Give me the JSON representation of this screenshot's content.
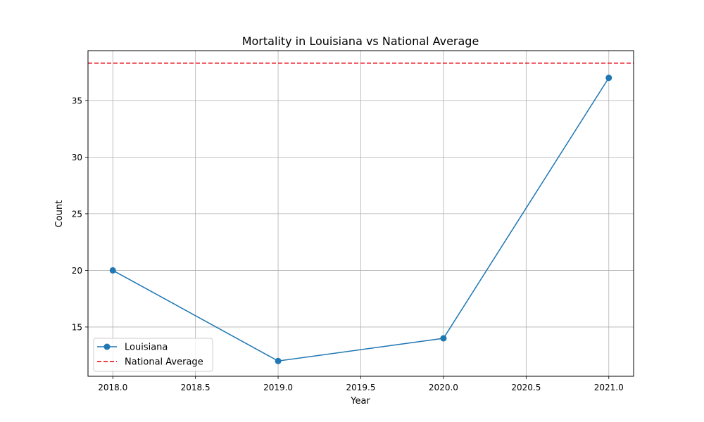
{
  "chart_data": {
    "type": "line",
    "title": "Mortality in Louisiana vs National Average",
    "xlabel": "Year",
    "ylabel": "Count",
    "xlim": [
      1967.85,
      2021.15
    ],
    "ylim": [
      10.65,
      39.4
    ],
    "xlim_visible": [
      2017.85,
      2021.15
    ],
    "ylim_visible": [
      10.65,
      39.4
    ],
    "x_ticks": [
      2018.0,
      2018.5,
      2019.0,
      2019.5,
      2020.0,
      2020.5,
      2021.0
    ],
    "x_tick_labels": [
      "2018.0",
      "2018.5",
      "2019.0",
      "2019.5",
      "2020.0",
      "2020.5",
      "2021.0"
    ],
    "y_ticks": [
      15,
      20,
      25,
      30,
      35
    ],
    "y_tick_labels": [
      "15",
      "20",
      "25",
      "30",
      "35"
    ],
    "grid": true,
    "legend_position": "lower-left",
    "series": [
      {
        "name": "Louisiana",
        "x": [
          2018,
          2019,
          2020,
          2021
        ],
        "y": [
          20,
          12,
          14,
          37
        ],
        "color": "#1f77b4",
        "style": "solid",
        "marker": "circle"
      }
    ],
    "reference_lines": [
      {
        "name": "National Average",
        "y": 38.3,
        "color": "#e8000b",
        "style": "dashed"
      }
    ]
  }
}
